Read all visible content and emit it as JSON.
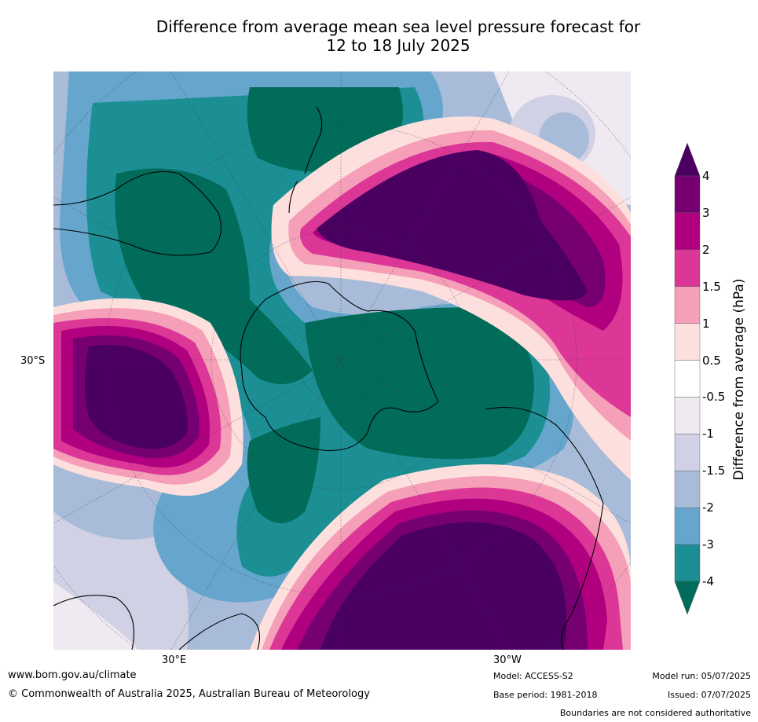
{
  "title": {
    "line1": "Difference from average mean sea level pressure forecast for",
    "line2": "12 to 18 July 2025"
  },
  "map": {
    "lat_label": "30°S",
    "lon_labels": [
      "30°E",
      "30°W"
    ]
  },
  "colorbar": {
    "label": "Difference from average (hPa)",
    "ticks": [
      "4",
      "3",
      "2",
      "1.5",
      "1",
      "0.5",
      "-0.5",
      "-1",
      "-1.5",
      "-2",
      "-3",
      "-4"
    ],
    "bands": [
      {
        "range": "> 4",
        "color": "#4a0060"
      },
      {
        "range": "3 to 4",
        "color": "#760072"
      },
      {
        "range": "2 to 3",
        "color": "#b0007f"
      },
      {
        "range": "1.5 to 2",
        "color": "#dc3797"
      },
      {
        "range": "1 to 1.5",
        "color": "#f5a0b8"
      },
      {
        "range": "0.5 to 1",
        "color": "#fde0dd"
      },
      {
        "range": "-0.5 to 0.5",
        "color": "#ffffff"
      },
      {
        "range": "-1 to -0.5",
        "color": "#efe9f1"
      },
      {
        "range": "-1.5 to -1",
        "color": "#d1d1e5"
      },
      {
        "range": "-2 to -1.5",
        "color": "#a8bcd9"
      },
      {
        "range": "-3 to -2",
        "color": "#66a6cd"
      },
      {
        "range": "-4 to -3",
        "color": "#1c8f95"
      },
      {
        "range": "< -4",
        "color": "#016c59"
      }
    ]
  },
  "footer": {
    "website": "www.bom.gov.au/climate",
    "copyright": "© Commonwealth of Australia 2025, Australian Bureau of Meteorology",
    "model": "Model: ACCESS-S2",
    "base_period": "Base period: 1981-2018",
    "model_run": "Model run: 05/07/2025",
    "issued": "Issued: 07/07/2025",
    "disclaimer": "Boundaries are not considered authoritative"
  }
}
